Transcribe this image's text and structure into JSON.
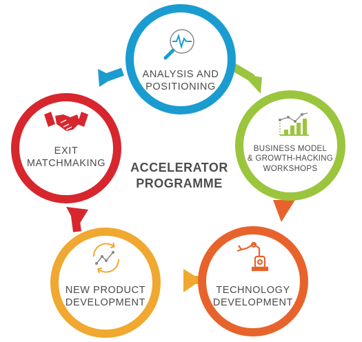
{
  "center": {
    "title": "ACCELERATOR\nPROGRAMME"
  },
  "stages": [
    {
      "label": "ANALYSIS AND\nPOSITIONING",
      "color": "#1a9cd0",
      "icon": "magnifier-pulse-icon"
    },
    {
      "label": "BUSINESS MODEL\n& GROWTH-HACKING\nWORKSHOPS",
      "color": "#9bc53d",
      "icon": "bar-chart-icon"
    },
    {
      "label": "TECHNOLOGY\nDEVELOPMENT",
      "color": "#e8632b",
      "icon": "robot-arm-icon"
    },
    {
      "label": "NEW PRODUCT\nDEVELOPMENT",
      "color": "#f0a830",
      "icon": "cycle-growth-icon"
    },
    {
      "label": "EXIT\nMATCHMAKING",
      "color": "#d7262e",
      "icon": "handshake-icon"
    }
  ]
}
